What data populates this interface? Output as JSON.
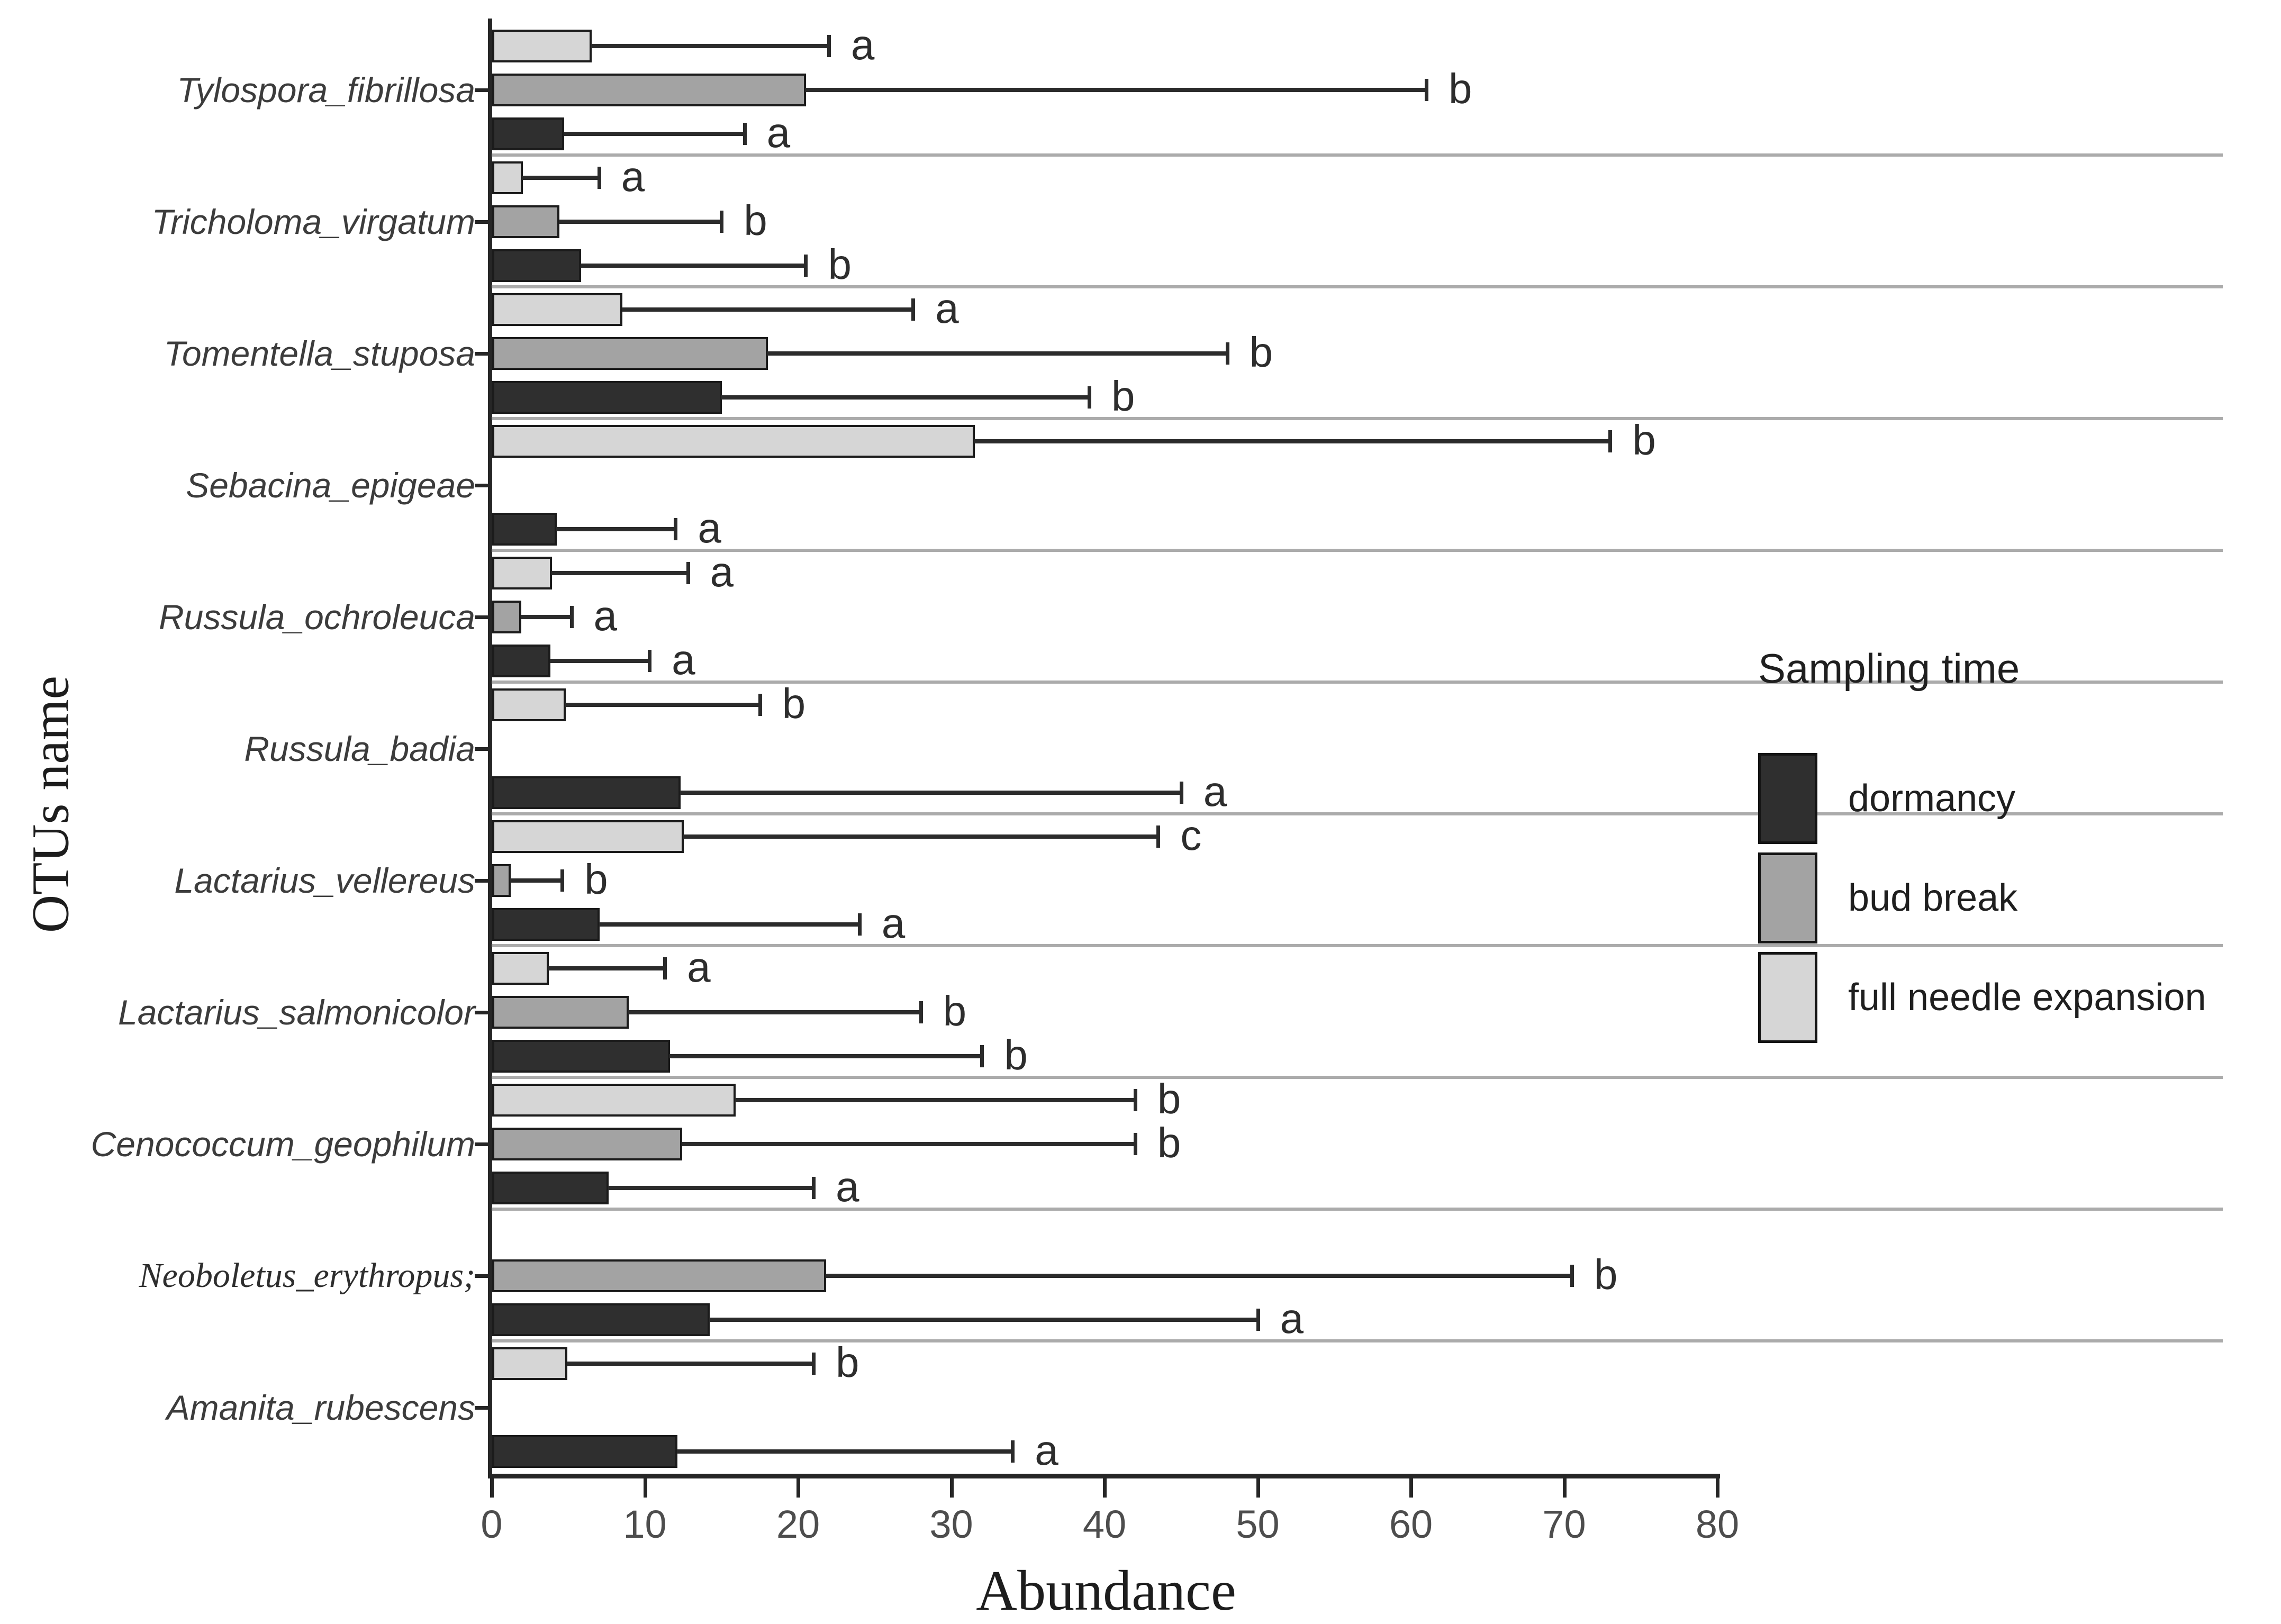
{
  "chart_data": {
    "type": "bar",
    "orientation": "horizontal",
    "xlabel": "Abundance",
    "ylabel": "OTUs name",
    "xlim": [
      0,
      80
    ],
    "x_ticks": [
      0,
      10,
      20,
      30,
      40,
      50,
      60,
      70,
      80
    ],
    "grid": false,
    "legend": {
      "title": "Sampling time",
      "position": "right",
      "entries": [
        {
          "id": "dormancy",
          "label": "dormancy",
          "color": "#2f2f2f"
        },
        {
          "id": "bud_break",
          "label": "bud break",
          "color": "#a3a3a3"
        },
        {
          "id": "full_needle_expansion",
          "label": "full needle expansion",
          "color": "#d6d6d6"
        }
      ]
    },
    "series_order_top_to_bottom": [
      "full_needle_expansion",
      "bud_break",
      "dormancy"
    ],
    "categories": [
      "Tylospora_fibrillosa",
      "Tricholoma_virgatum",
      "Tomentella_stuposa",
      "Sebacina_epigeae",
      "Russula_ochroleuca",
      "Russula_badia",
      "Lactarius_vellereus",
      "Lactarius_salmonicolor",
      "Cenococcum_geophilum",
      "Neoboletus_erythropus;",
      "Amanita_rubescens"
    ],
    "rows": [
      {
        "species": "Tylospora_fibrillosa",
        "serif_label": false,
        "bars": {
          "full_needle_expansion": {
            "value": 6.5,
            "error_high": 22,
            "letter": "a"
          },
          "bud_break": {
            "value": 20.5,
            "error_high": 61,
            "letter": "b"
          },
          "dormancy": {
            "value": 4.7,
            "error_high": 16.5,
            "letter": "a"
          }
        }
      },
      {
        "species": "Tricholoma_virgatum",
        "serif_label": false,
        "bars": {
          "full_needle_expansion": {
            "value": 2.0,
            "error_high": 7,
            "letter": "a"
          },
          "bud_break": {
            "value": 4.4,
            "error_high": 15,
            "letter": "b"
          },
          "dormancy": {
            "value": 5.8,
            "error_high": 20.5,
            "letter": "b"
          }
        }
      },
      {
        "species": "Tomentella_stuposa",
        "serif_label": false,
        "bars": {
          "full_needle_expansion": {
            "value": 8.5,
            "error_high": 27.5,
            "letter": "a"
          },
          "bud_break": {
            "value": 18,
            "error_high": 48,
            "letter": "b"
          },
          "dormancy": {
            "value": 15,
            "error_high": 39,
            "letter": "b"
          }
        }
      },
      {
        "species": "Sebacina_epigeae",
        "serif_label": false,
        "bars": {
          "full_needle_expansion": {
            "value": 31.5,
            "error_high": 73,
            "letter": "b"
          },
          "bud_break": null,
          "dormancy": {
            "value": 4.2,
            "error_high": 12,
            "letter": "a"
          }
        }
      },
      {
        "species": "Russula_ochroleuca",
        "serif_label": false,
        "bars": {
          "full_needle_expansion": {
            "value": 3.9,
            "error_high": 12.8,
            "letter": "a"
          },
          "bud_break": {
            "value": 1.9,
            "error_high": 5.2,
            "letter": "a"
          },
          "dormancy": {
            "value": 3.8,
            "error_high": 10.3,
            "letter": "a"
          }
        }
      },
      {
        "species": "Russula_badia",
        "serif_label": false,
        "bars": {
          "full_needle_expansion": {
            "value": 4.8,
            "error_high": 17.5,
            "letter": "b"
          },
          "bud_break": null,
          "dormancy": {
            "value": 12.3,
            "error_high": 45,
            "letter": "a"
          }
        }
      },
      {
        "species": "Lactarius_vellereus",
        "serif_label": false,
        "bars": {
          "full_needle_expansion": {
            "value": 12.5,
            "error_high": 43.5,
            "letter": "c"
          },
          "bud_break": {
            "value": 1.2,
            "error_high": 4.6,
            "letter": "b"
          },
          "dormancy": {
            "value": 7.0,
            "error_high": 24,
            "letter": "a"
          }
        }
      },
      {
        "species": "Lactarius_salmonicolor",
        "serif_label": false,
        "bars": {
          "full_needle_expansion": {
            "value": 3.7,
            "error_high": 11.3,
            "letter": "a"
          },
          "bud_break": {
            "value": 8.9,
            "error_high": 28,
            "letter": "b"
          },
          "dormancy": {
            "value": 11.6,
            "error_high": 32,
            "letter": "b"
          }
        }
      },
      {
        "species": "Cenococcum_geophilum",
        "serif_label": false,
        "bars": {
          "full_needle_expansion": {
            "value": 15.9,
            "error_high": 42,
            "letter": "b"
          },
          "bud_break": {
            "value": 12.4,
            "error_high": 42,
            "letter": "b"
          },
          "dormancy": {
            "value": 7.6,
            "error_high": 21,
            "letter": "a"
          }
        }
      },
      {
        "species": "Neoboletus_erythropus;",
        "serif_label": true,
        "bars": {
          "full_needle_expansion": null,
          "bud_break": {
            "value": 21.8,
            "error_high": 70.5,
            "letter": "b"
          },
          "dormancy": {
            "value": 14.2,
            "error_high": 50,
            "letter": "a"
          }
        }
      },
      {
        "species": "Amanita_rubescens",
        "serif_label": false,
        "bars": {
          "full_needle_expansion": {
            "value": 4.9,
            "error_high": 21,
            "letter": "b"
          },
          "bud_break": null,
          "dormancy": {
            "value": 12.1,
            "error_high": 34,
            "letter": "a"
          }
        }
      }
    ]
  }
}
